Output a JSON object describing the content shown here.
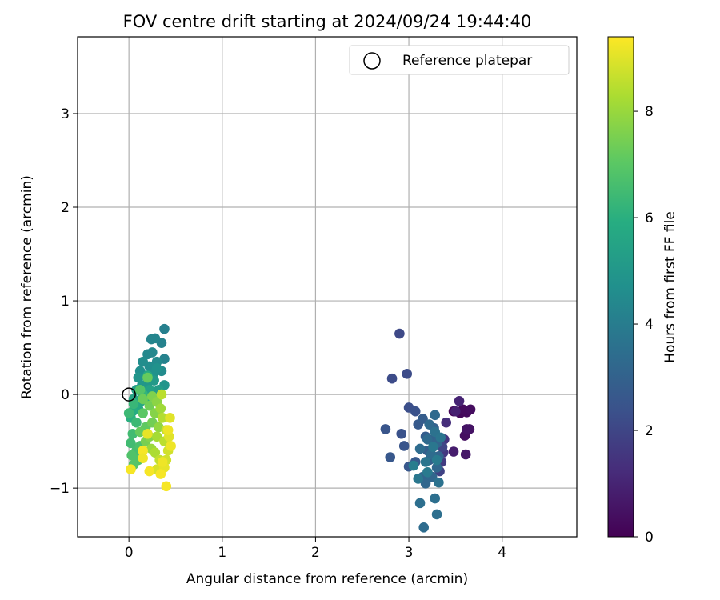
{
  "chart_data": {
    "type": "scatter",
    "title": "FOV centre drift starting at 2024/09/24 19:44:40",
    "xlabel": "Angular distance from reference (arcmin)",
    "ylabel": "Rotation from reference (arcmin)",
    "xlim": [
      -0.55,
      4.8
    ],
    "ylim": [
      -1.52,
      3.82
    ],
    "xticks": [
      0,
      1,
      2,
      3,
      4
    ],
    "yticks": [
      -1,
      0,
      1,
      2,
      3
    ],
    "xtick_labels": [
      "0",
      "1",
      "2",
      "3",
      "4"
    ],
    "ytick_labels": [
      "−1",
      "0",
      "1",
      "2",
      "3"
    ],
    "grid": true,
    "legend": {
      "placement": "top-right",
      "entries": [
        {
          "label": "Reference platepar",
          "marker": "open-circle"
        }
      ]
    },
    "reference_point": {
      "x": 0,
      "y": 0
    },
    "colorbar": {
      "label": "Hours from first FF file",
      "colormap": "viridis",
      "range": [
        0,
        9.4
      ],
      "ticks": [
        0,
        2,
        4,
        6,
        8
      ],
      "tick_labels": [
        "0",
        "2",
        "4",
        "6",
        "8"
      ]
    },
    "points": [
      {
        "x": 3.48,
        "y": -0.18,
        "t": 0.1
      },
      {
        "x": 3.55,
        "y": -0.2,
        "t": 0.2
      },
      {
        "x": 3.62,
        "y": -0.19,
        "t": 0.25
      },
      {
        "x": 3.58,
        "y": -0.16,
        "t": 0.3
      },
      {
        "x": 3.66,
        "y": -0.16,
        "t": 0.35
      },
      {
        "x": 3.6,
        "y": -0.44,
        "t": 0.4
      },
      {
        "x": 3.65,
        "y": -0.37,
        "t": 0.5
      },
      {
        "x": 3.62,
        "y": -0.37,
        "t": 0.55
      },
      {
        "x": 3.61,
        "y": -0.64,
        "t": 0.6
      },
      {
        "x": 3.48,
        "y": -0.61,
        "t": 0.8
      },
      {
        "x": 3.5,
        "y": -0.18,
        "t": 0.9
      },
      {
        "x": 3.54,
        "y": -0.07,
        "t": 1.0
      },
      {
        "x": 3.4,
        "y": -0.3,
        "t": 1.3
      },
      {
        "x": 3.38,
        "y": -0.48,
        "t": 1.5
      },
      {
        "x": 3.37,
        "y": -0.62,
        "t": 1.6
      },
      {
        "x": 3.35,
        "y": -0.72,
        "t": 1.7
      },
      {
        "x": 3.33,
        "y": -0.82,
        "t": 1.9
      },
      {
        "x": 3.36,
        "y": -0.56,
        "t": 2.0
      },
      {
        "x": 2.9,
        "y": 0.65,
        "t": 2.1
      },
      {
        "x": 2.98,
        "y": 0.22,
        "t": 2.2
      },
      {
        "x": 2.82,
        "y": 0.17,
        "t": 2.2
      },
      {
        "x": 3.0,
        "y": -0.14,
        "t": 2.3
      },
      {
        "x": 3.07,
        "y": -0.18,
        "t": 2.4
      },
      {
        "x": 2.92,
        "y": -0.42,
        "t": 2.4
      },
      {
        "x": 2.75,
        "y": -0.37,
        "t": 2.5
      },
      {
        "x": 2.95,
        "y": -0.55,
        "t": 2.5
      },
      {
        "x": 2.8,
        "y": -0.67,
        "t": 2.6
      },
      {
        "x": 3.0,
        "y": -0.77,
        "t": 2.6
      },
      {
        "x": 3.07,
        "y": -0.72,
        "t": 2.7
      },
      {
        "x": 3.1,
        "y": -0.32,
        "t": 2.7
      },
      {
        "x": 3.15,
        "y": -0.26,
        "t": 2.8
      },
      {
        "x": 3.18,
        "y": -0.45,
        "t": 2.8
      },
      {
        "x": 3.2,
        "y": -0.6,
        "t": 2.9
      },
      {
        "x": 3.22,
        "y": -0.7,
        "t": 2.9
      },
      {
        "x": 3.25,
        "y": -0.48,
        "t": 3.0
      },
      {
        "x": 3.27,
        "y": -0.36,
        "t": 3.0
      },
      {
        "x": 3.3,
        "y": -0.52,
        "t": 3.1
      },
      {
        "x": 3.32,
        "y": -0.66,
        "t": 3.1
      },
      {
        "x": 3.15,
        "y": -0.88,
        "t": 3.1
      },
      {
        "x": 3.18,
        "y": -0.95,
        "t": 3.2
      },
      {
        "x": 3.25,
        "y": -0.88,
        "t": 3.2
      },
      {
        "x": 3.3,
        "y": -0.78,
        "t": 3.2
      },
      {
        "x": 3.28,
        "y": -0.22,
        "t": 3.3
      },
      {
        "x": 3.22,
        "y": -0.32,
        "t": 3.3
      },
      {
        "x": 3.2,
        "y": -0.48,
        "t": 3.3
      },
      {
        "x": 3.12,
        "y": -0.58,
        "t": 3.4
      },
      {
        "x": 3.24,
        "y": -0.64,
        "t": 3.4
      },
      {
        "x": 3.16,
        "y": -1.42,
        "t": 3.4
      },
      {
        "x": 3.12,
        "y": -1.16,
        "t": 3.5
      },
      {
        "x": 3.28,
        "y": -1.11,
        "t": 3.5
      },
      {
        "x": 3.3,
        "y": -1.28,
        "t": 3.5
      },
      {
        "x": 3.32,
        "y": -0.94,
        "t": 3.6
      },
      {
        "x": 3.28,
        "y": -0.4,
        "t": 3.6
      },
      {
        "x": 3.34,
        "y": -0.46,
        "t": 3.7
      },
      {
        "x": 3.18,
        "y": -0.72,
        "t": 3.7
      },
      {
        "x": 3.1,
        "y": -0.9,
        "t": 3.8
      },
      {
        "x": 3.26,
        "y": -0.56,
        "t": 3.8
      },
      {
        "x": 3.2,
        "y": -0.83,
        "t": 3.9
      },
      {
        "x": 3.3,
        "y": -0.7,
        "t": 3.9
      },
      {
        "x": 3.05,
        "y": -0.76,
        "t": 4.0
      },
      {
        "x": 0.38,
        "y": 0.7,
        "t": 4.1
      },
      {
        "x": 0.35,
        "y": 0.55,
        "t": 4.2
      },
      {
        "x": 0.38,
        "y": 0.38,
        "t": 4.2
      },
      {
        "x": 0.28,
        "y": 0.6,
        "t": 4.3
      },
      {
        "x": 0.24,
        "y": 0.59,
        "t": 4.3
      },
      {
        "x": 0.25,
        "y": 0.45,
        "t": 4.4
      },
      {
        "x": 0.2,
        "y": 0.43,
        "t": 4.4
      },
      {
        "x": 0.3,
        "y": 0.35,
        "t": 4.5
      },
      {
        "x": 0.35,
        "y": 0.25,
        "t": 4.5
      },
      {
        "x": 0.22,
        "y": 0.3,
        "t": 4.6
      },
      {
        "x": 0.15,
        "y": 0.35,
        "t": 4.6
      },
      {
        "x": 0.12,
        "y": 0.25,
        "t": 4.7
      },
      {
        "x": 0.18,
        "y": 0.2,
        "t": 4.7
      },
      {
        "x": 0.26,
        "y": 0.22,
        "t": 4.8
      },
      {
        "x": 0.3,
        "y": 0.28,
        "t": 4.8
      },
      {
        "x": 0.38,
        "y": 0.1,
        "t": 4.9
      },
      {
        "x": 0.1,
        "y": 0.18,
        "t": 4.9
      },
      {
        "x": 0.14,
        "y": 0.1,
        "t": 5.0
      },
      {
        "x": 0.2,
        "y": 0.12,
        "t": 5.0
      },
      {
        "x": 0.27,
        "y": 0.15,
        "t": 5.1
      },
      {
        "x": 0.32,
        "y": 0.05,
        "t": 5.2
      },
      {
        "x": 0.08,
        "y": 0.05,
        "t": 5.3
      },
      {
        "x": 0.16,
        "y": 0.0,
        "t": 5.3
      },
      {
        "x": 0.22,
        "y": 0.05,
        "t": 5.4
      },
      {
        "x": 0.05,
        "y": -0.05,
        "t": 5.5
      },
      {
        "x": 0.12,
        "y": -0.08,
        "t": 5.6
      },
      {
        "x": 0.1,
        "y": -0.15,
        "t": 5.7
      },
      {
        "x": 0.2,
        "y": 0.2,
        "t": 5.8
      },
      {
        "x": 0.04,
        "y": -0.18,
        "t": 5.9
      },
      {
        "x": 0.02,
        "y": -0.25,
        "t": 6.0
      },
      {
        "x": 0.18,
        "y": -0.05,
        "t": 6.1
      },
      {
        "x": 0.15,
        "y": 0.0,
        "t": 6.2
      },
      {
        "x": 0.05,
        "y": -0.1,
        "t": 6.3
      },
      {
        "x": 0.0,
        "y": -0.2,
        "t": 6.4
      },
      {
        "x": 0.08,
        "y": -0.3,
        "t": 6.4
      },
      {
        "x": 0.02,
        "y": -0.52,
        "t": 6.5
      },
      {
        "x": 0.04,
        "y": -0.42,
        "t": 6.5
      },
      {
        "x": 0.08,
        "y": -0.6,
        "t": 6.6
      },
      {
        "x": 0.12,
        "y": -0.55,
        "t": 6.7
      },
      {
        "x": 0.03,
        "y": -0.65,
        "t": 6.8
      },
      {
        "x": 0.1,
        "y": -0.7,
        "t": 6.8
      },
      {
        "x": 0.05,
        "y": -0.75,
        "t": 6.9
      },
      {
        "x": 0.12,
        "y": 0.05,
        "t": 6.9
      },
      {
        "x": 0.15,
        "y": -0.2,
        "t": 7.0
      },
      {
        "x": 0.18,
        "y": -0.35,
        "t": 7.1
      },
      {
        "x": 0.2,
        "y": 0.18,
        "t": 7.2
      },
      {
        "x": 0.12,
        "y": -0.4,
        "t": 7.2
      },
      {
        "x": 0.15,
        "y": -0.05,
        "t": 7.3
      },
      {
        "x": 0.22,
        "y": -0.12,
        "t": 7.4
      },
      {
        "x": 0.25,
        "y": -0.3,
        "t": 7.4
      },
      {
        "x": 0.18,
        "y": -0.5,
        "t": 7.5
      },
      {
        "x": 0.25,
        "y": -0.02,
        "t": 7.6
      },
      {
        "x": 0.28,
        "y": -0.2,
        "t": 7.7
      },
      {
        "x": 0.22,
        "y": -0.45,
        "t": 7.7
      },
      {
        "x": 0.3,
        "y": -0.08,
        "t": 7.8
      },
      {
        "x": 0.32,
        "y": -0.35,
        "t": 7.9
      },
      {
        "x": 0.24,
        "y": -0.58,
        "t": 8.0
      },
      {
        "x": 0.34,
        "y": -0.15,
        "t": 8.1
      },
      {
        "x": 0.3,
        "y": -0.45,
        "t": 8.2
      },
      {
        "x": 0.28,
        "y": -0.62,
        "t": 8.3
      },
      {
        "x": 0.36,
        "y": -0.25,
        "t": 8.4
      },
      {
        "x": 0.35,
        "y": 0.0,
        "t": 8.5
      },
      {
        "x": 0.38,
        "y": -0.5,
        "t": 8.5
      },
      {
        "x": 0.33,
        "y": -0.7,
        "t": 8.6
      },
      {
        "x": 0.4,
        "y": -0.38,
        "t": 8.7
      },
      {
        "x": 0.42,
        "y": -0.6,
        "t": 8.8
      },
      {
        "x": 0.4,
        "y": -0.7,
        "t": 8.8
      },
      {
        "x": 0.3,
        "y": -0.8,
        "t": 8.9
      },
      {
        "x": 0.43,
        "y": -0.45,
        "t": 9.0
      },
      {
        "x": 0.44,
        "y": -0.25,
        "t": 9.0
      },
      {
        "x": 0.2,
        "y": -0.42,
        "t": 9.1
      },
      {
        "x": 0.38,
        "y": -0.78,
        "t": 9.1
      },
      {
        "x": 0.36,
        "y": -0.72,
        "t": 9.2
      },
      {
        "x": 0.45,
        "y": -0.55,
        "t": 9.2
      },
      {
        "x": 0.4,
        "y": -0.98,
        "t": 9.3
      },
      {
        "x": 0.34,
        "y": -0.85,
        "t": 9.3
      },
      {
        "x": 0.22,
        "y": -0.82,
        "t": 9.3
      },
      {
        "x": 0.15,
        "y": -0.6,
        "t": 9.3
      },
      {
        "x": 0.02,
        "y": -0.8,
        "t": 9.3
      },
      {
        "x": 0.15,
        "y": -0.68,
        "t": 9.2
      },
      {
        "x": 0.42,
        "y": -0.38,
        "t": 9.2
      }
    ]
  }
}
